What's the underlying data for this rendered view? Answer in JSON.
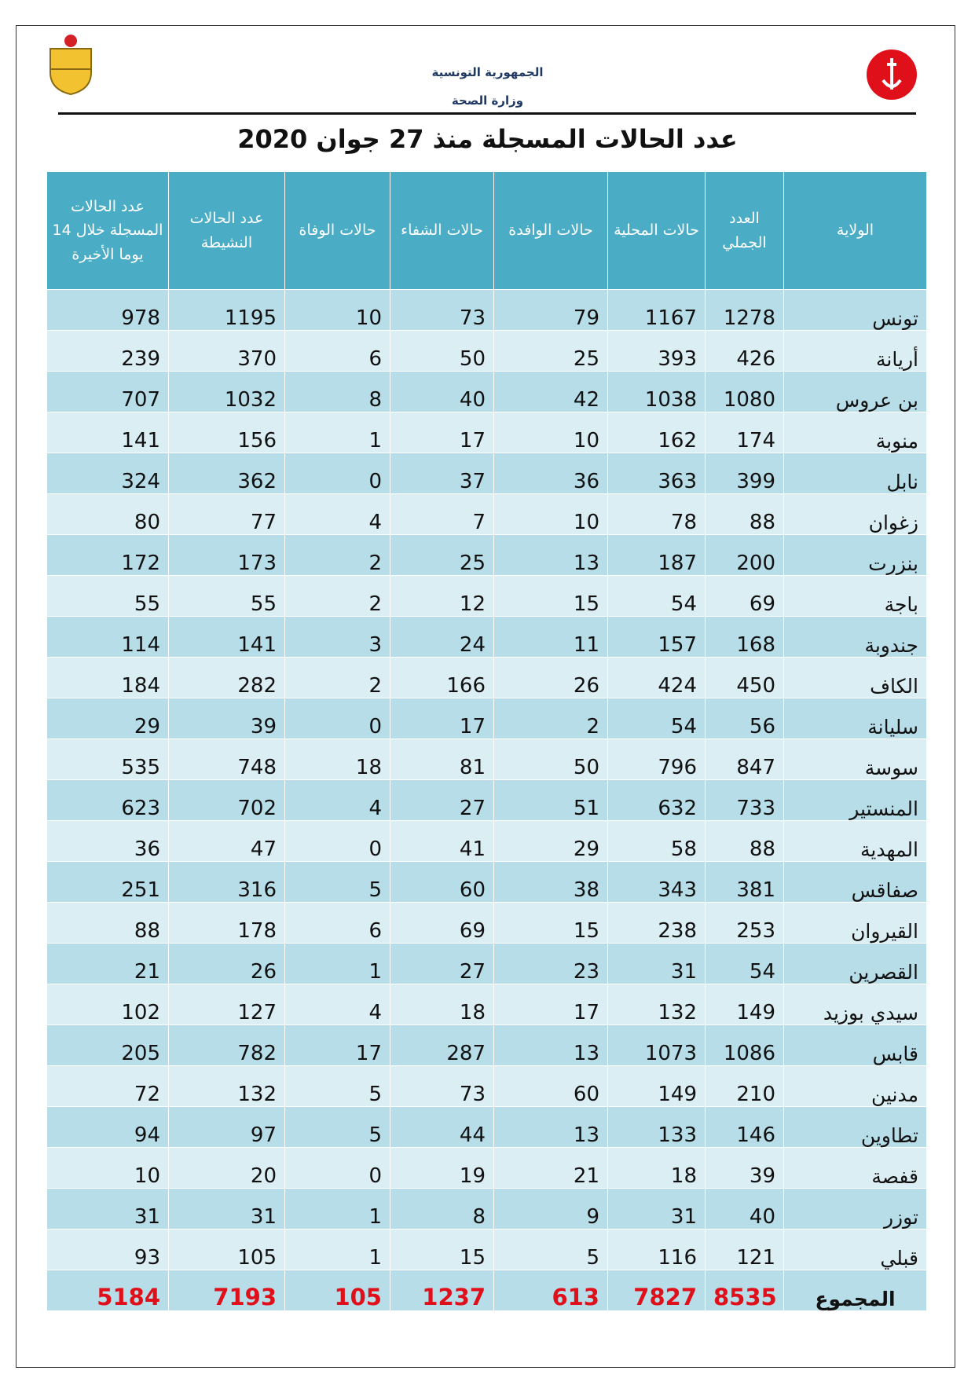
{
  "header": {
    "republic": "الجمهورية التونسية",
    "ministry": "وزارة الصحة"
  },
  "title": "عدد الحالات المسجلة منذ 27 جوان 2020",
  "table": {
    "columns": [
      "الولاية",
      "العدد الجملي",
      "حالات المحلية",
      "حالات الوافدة",
      "حالات الشفاء",
      "حالات الوفاة",
      "عدد الحالات النشيطة",
      "عدد الحالات المسجلة خلال 14 يوما الأخيرة"
    ],
    "rows": [
      [
        "تونس",
        1278,
        1167,
        79,
        73,
        10,
        1195,
        978
      ],
      [
        "أريانة",
        426,
        393,
        25,
        50,
        6,
        370,
        239
      ],
      [
        "بن عروس",
        1080,
        1038,
        42,
        40,
        8,
        1032,
        707
      ],
      [
        "منوبة",
        174,
        162,
        10,
        17,
        1,
        156,
        141
      ],
      [
        "نابل",
        399,
        363,
        36,
        37,
        0,
        362,
        324
      ],
      [
        "زغوان",
        88,
        78,
        10,
        7,
        4,
        77,
        80
      ],
      [
        "بنزرت",
        200,
        187,
        13,
        25,
        2,
        173,
        172
      ],
      [
        "باجة",
        69,
        54,
        15,
        12,
        2,
        55,
        55
      ],
      [
        "جندوبة",
        168,
        157,
        11,
        24,
        3,
        141,
        114
      ],
      [
        "الكاف",
        450,
        424,
        26,
        166,
        2,
        282,
        184
      ],
      [
        "سليانة",
        56,
        54,
        2,
        17,
        0,
        39,
        29
      ],
      [
        "سوسة",
        847,
        796,
        50,
        81,
        18,
        748,
        535
      ],
      [
        "المنستير",
        733,
        632,
        51,
        27,
        4,
        702,
        623
      ],
      [
        "المهدية",
        88,
        58,
        29,
        41,
        0,
        47,
        36
      ],
      [
        "صفاقس",
        381,
        343,
        38,
        60,
        5,
        316,
        251
      ],
      [
        "القيروان",
        253,
        238,
        15,
        69,
        6,
        178,
        88
      ],
      [
        "القصرين",
        54,
        31,
        23,
        27,
        1,
        26,
        21
      ],
      [
        "سيدي بوزيد",
        149,
        132,
        17,
        18,
        4,
        127,
        102
      ],
      [
        "قابس",
        1086,
        1073,
        13,
        287,
        17,
        782,
        205
      ],
      [
        "مدنين",
        210,
        149,
        60,
        73,
        5,
        132,
        72
      ],
      [
        "تطاوين",
        146,
        133,
        13,
        44,
        5,
        97,
        94
      ],
      [
        "قفصة",
        39,
        18,
        21,
        19,
        0,
        20,
        10
      ],
      [
        "توزر",
        40,
        31,
        9,
        8,
        1,
        31,
        31
      ],
      [
        "قبلي",
        121,
        116,
        5,
        15,
        1,
        105,
        93
      ]
    ],
    "total": [
      "المجموع",
      8535,
      7827,
      613,
      1237,
      105,
      7193,
      5184
    ]
  }
}
